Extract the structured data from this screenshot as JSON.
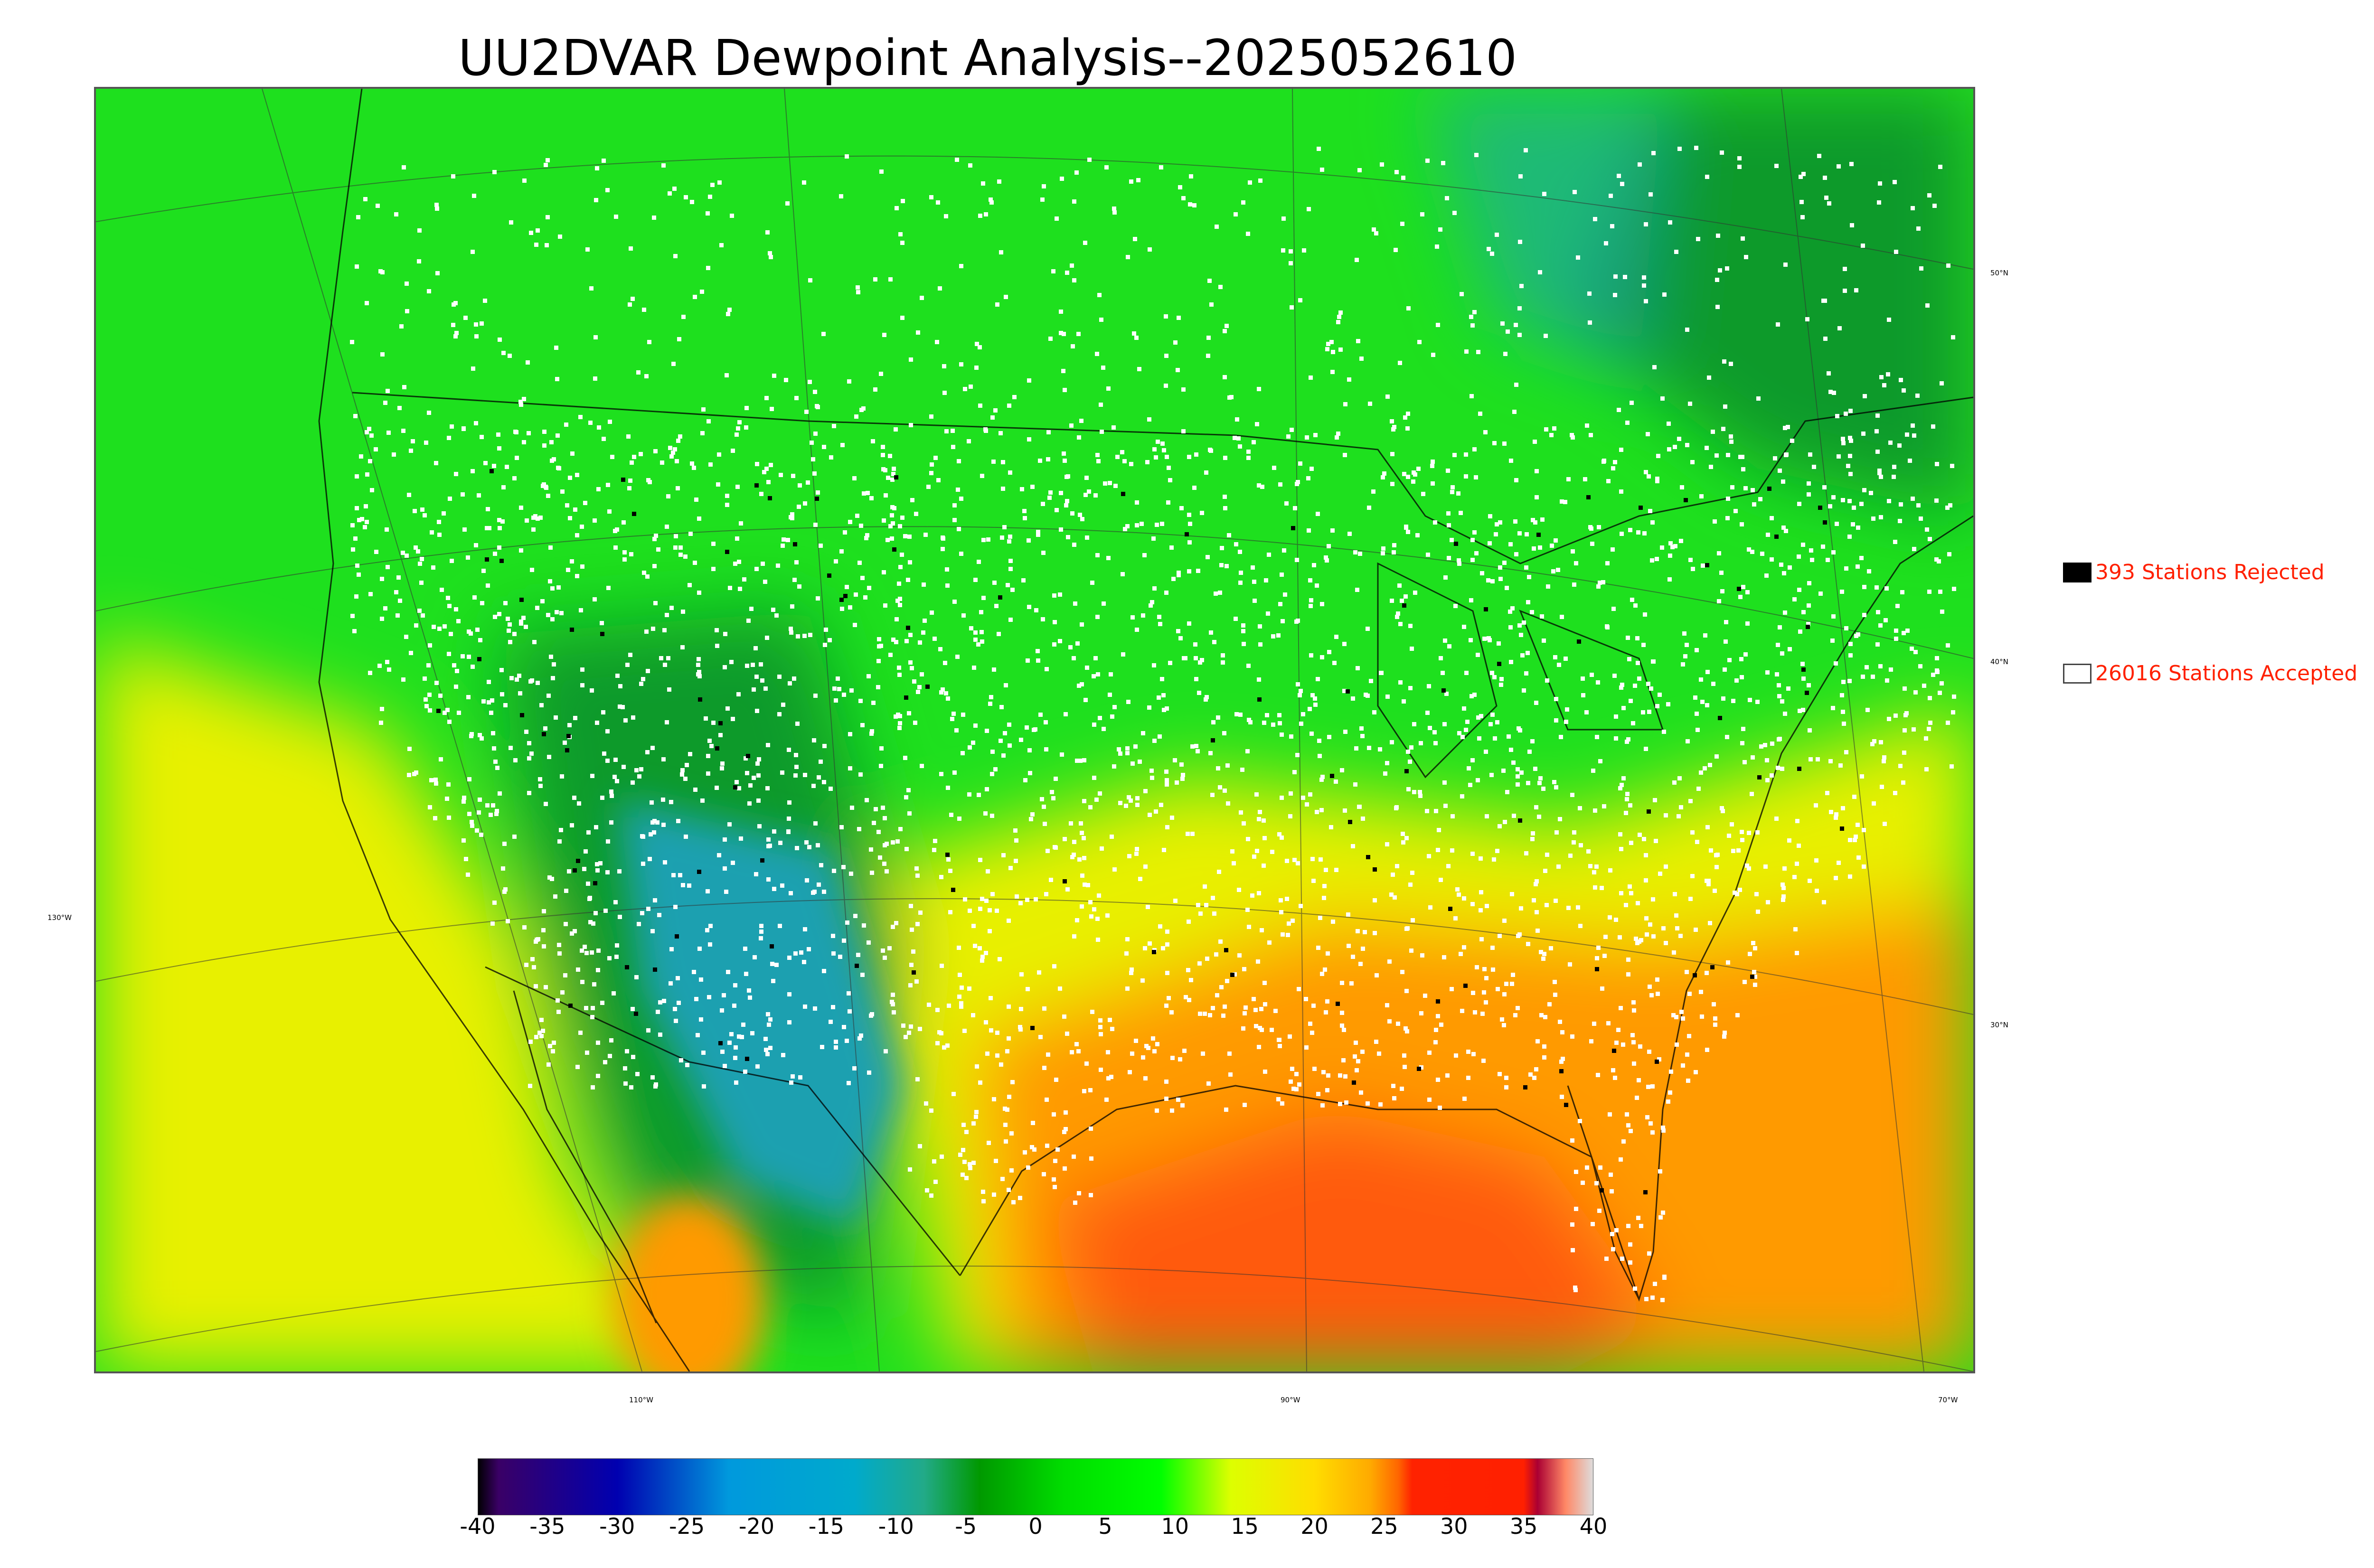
{
  "title": "UU2DVAR Dewpoint Analysis--2025052610",
  "lat_labels": [
    "50°N",
    "40°N",
    "30°N"
  ],
  "lon_labels": [
    "130°W",
    "110°W",
    "90°W",
    "70°W"
  ],
  "legend": {
    "rejected": {
      "count": 393,
      "label": "393 Stations Rejected",
      "swatch": "#000000"
    },
    "accepted": {
      "count": 26016,
      "label": "26016 Stations Accepted",
      "swatch": "#ffffff"
    }
  },
  "colorbar": {
    "min": -40,
    "max": 40,
    "tick_labels": [
      "-40",
      "-35",
      "-30",
      "-25",
      "-20",
      "-15",
      "-10",
      "-5",
      "0",
      "5",
      "10",
      "15",
      "20",
      "25",
      "30",
      "35",
      "40"
    ],
    "stops": [
      {
        "value": -40,
        "color": "#000000"
      },
      {
        "value": -38.5,
        "color": "#3a0066"
      },
      {
        "value": -30,
        "color": "#0000b0"
      },
      {
        "value": -22,
        "color": "#0099dd"
      },
      {
        "value": -13,
        "color": "#00aacc"
      },
      {
        "value": -8,
        "color": "#22aa88"
      },
      {
        "value": -4,
        "color": "#009900"
      },
      {
        "value": 2,
        "color": "#00dd00"
      },
      {
        "value": 9,
        "color": "#00ff00"
      },
      {
        "value": 14,
        "color": "#ddff00"
      },
      {
        "value": 20,
        "color": "#ffdd00"
      },
      {
        "value": 24,
        "color": "#ffaa00"
      },
      {
        "value": 26,
        "color": "#ff6600"
      },
      {
        "value": 27,
        "color": "#ff2200"
      },
      {
        "value": 35,
        "color": "#ff2000"
      },
      {
        "value": 36,
        "color": "#aa0033"
      },
      {
        "value": 38,
        "color": "#ff8866"
      },
      {
        "value": 40,
        "color": "#dddddd"
      }
    ]
  },
  "colors": {
    "field_green": "#1ee01e",
    "field_dark_green": "#0a9a2a",
    "field_teal": "#1fa0b0",
    "field_yellow": "#e8f000",
    "field_orange": "#ff9a00",
    "field_red": "#ff5a10",
    "coast_line": "#000000",
    "station_accepted": "#ffffff",
    "station_rejected": "#000000"
  }
}
